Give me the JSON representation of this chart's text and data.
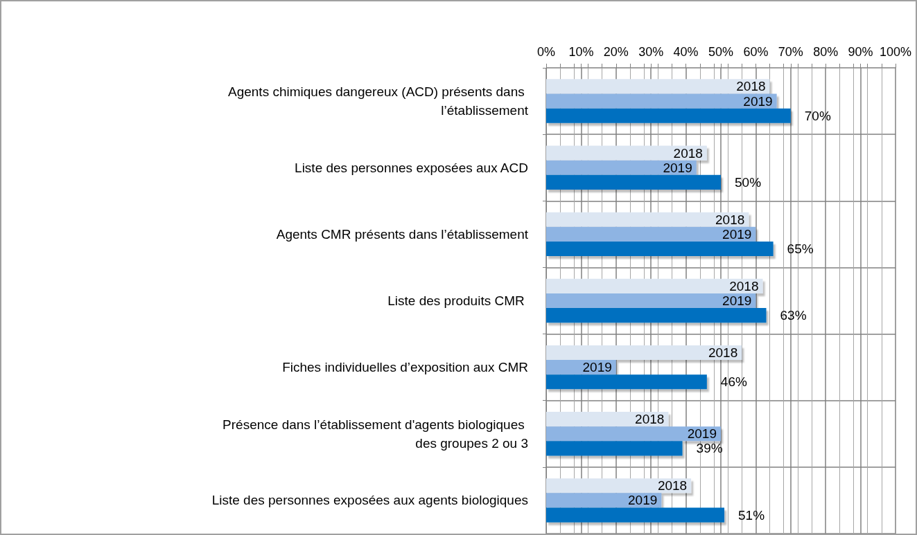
{
  "chart_data": {
    "type": "bar",
    "orientation": "horizontal",
    "categories": [
      "Agents chimiques dangereux (ACD) présents dans l’établissement",
      "Liste des personnes exposées aux ACD",
      "Agents CMR présents dans l’établissement",
      "Liste des produits CMR ",
      "Fiches individuelles d’exposition aux CMR",
      "Présence dans l’établissement d'agents biologiques des groupes 2 ou 3",
      "Liste des personnes exposées aux agents biologiques"
    ],
    "series": [
      {
        "name": "2018",
        "color": "#dce6f2",
        "values": [
          64,
          46,
          58,
          62,
          56,
          35,
          41.5
        ]
      },
      {
        "name": "2019",
        "color": "#8eb4e3",
        "values": [
          66,
          43,
          60,
          60,
          20,
          50,
          33
        ]
      },
      {
        "color": "#0070c0",
        "values": [
          70,
          50,
          65,
          63,
          46,
          39,
          51
        ],
        "value_labels": [
          "70%",
          "50%",
          "65%",
          "63%",
          "46%",
          "39%",
          "51%"
        ]
      }
    ],
    "xlim": [
      0,
      100
    ],
    "xticks": [
      {
        "value": 0,
        "label": "0%"
      },
      {
        "value": 10,
        "label": "10%"
      },
      {
        "value": 20,
        "label": "20%"
      },
      {
        "value": 30,
        "label": "30%"
      },
      {
        "value": 40,
        "label": "40%"
      },
      {
        "value": 50,
        "label": "50%"
      },
      {
        "value": 60,
        "label": "60%"
      },
      {
        "value": 70,
        "label": "70%"
      },
      {
        "value": 80,
        "label": "80%"
      },
      {
        "value": 90,
        "label": "90%"
      },
      {
        "value": 100,
        "label": "100%"
      }
    ],
    "grid": true
  }
}
